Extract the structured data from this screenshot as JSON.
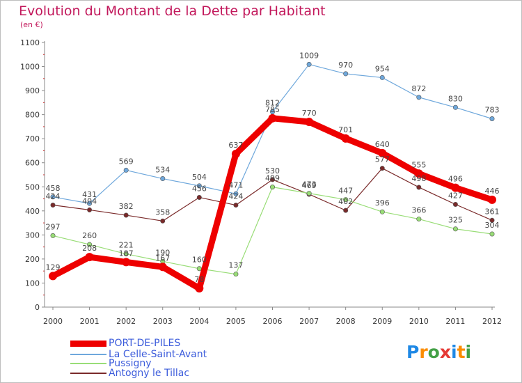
{
  "header": {
    "title": "Evolution du Montant de la Dette par Habitant",
    "subtitle": "(en €)"
  },
  "logo": {
    "text": "Proxiti",
    "letters": [
      {
        "ch": "P",
        "color": "#1e88e5"
      },
      {
        "ch": "r",
        "color": "#fb8c00"
      },
      {
        "ch": "o",
        "color": "#43a047"
      },
      {
        "ch": "x",
        "color": "#e53935"
      },
      {
        "ch": "i",
        "color": "#1e88e5"
      },
      {
        "ch": "t",
        "color": "#fb8c00"
      },
      {
        "ch": "i",
        "color": "#43a047"
      }
    ]
  },
  "chart_data": {
    "type": "line",
    "title": "Evolution du Montant de la Dette par Habitant",
    "subtitle": "(en €)",
    "x": [
      "2000",
      "2001",
      "2002",
      "2003",
      "2004",
      "2005",
      "2006",
      "2007",
      "2008",
      "2009",
      "2010",
      "2011",
      "2012"
    ],
    "ylim": [
      0,
      1100
    ],
    "yticks": [
      "0",
      "100",
      "200",
      "300",
      "400",
      "500",
      "600",
      "700",
      "800",
      "900",
      "1000",
      "1100"
    ],
    "grid": false,
    "legend_position": "bottom-left",
    "series": [
      {
        "name": "PORT-DE-PILES",
        "color": "#ee0000",
        "values": [
          129,
          208,
          187,
          167,
          78,
          637,
          785,
          770,
          701,
          640,
          555,
          496,
          446
        ],
        "labels": [
          "129",
          "208",
          "187",
          "167",
          "78",
          "637",
          "785",
          "770",
          "701",
          "640",
          "555",
          "496",
          "446"
        ]
      },
      {
        "name": "La Celle-Saint-Avant",
        "color": "#6fa8dc",
        "values": [
          458,
          431,
          569,
          534,
          504,
          471,
          812,
          1009,
          970,
          954,
          872,
          830,
          783
        ],
        "labels": [
          "458",
          "431",
          "569",
          "534",
          "504",
          "471",
          "812",
          "1009",
          "970",
          "954",
          "872",
          "830",
          "783"
        ]
      },
      {
        "name": "Pussigny",
        "color": "#99dd77",
        "values": [
          297,
          260,
          221,
          190,
          160,
          137,
          499,
          473,
          447,
          396,
          366,
          325,
          304
        ],
        "labels": [
          "297",
          "260",
          "221",
          "190",
          "160",
          "137",
          "499",
          "473",
          "447",
          "396",
          "366",
          "325",
          "304"
        ]
      },
      {
        "name": "Antogny le Tillac",
        "color": "#7a2a2a",
        "values": [
          424,
          404,
          382,
          358,
          456,
          424,
          530,
          469,
          402,
          577,
          498,
          427,
          361
        ],
        "labels": [
          "424",
          "404",
          "382",
          "358",
          "456",
          "424",
          "530",
          "469",
          "402",
          "577",
          "498",
          "427",
          "361"
        ]
      }
    ]
  }
}
